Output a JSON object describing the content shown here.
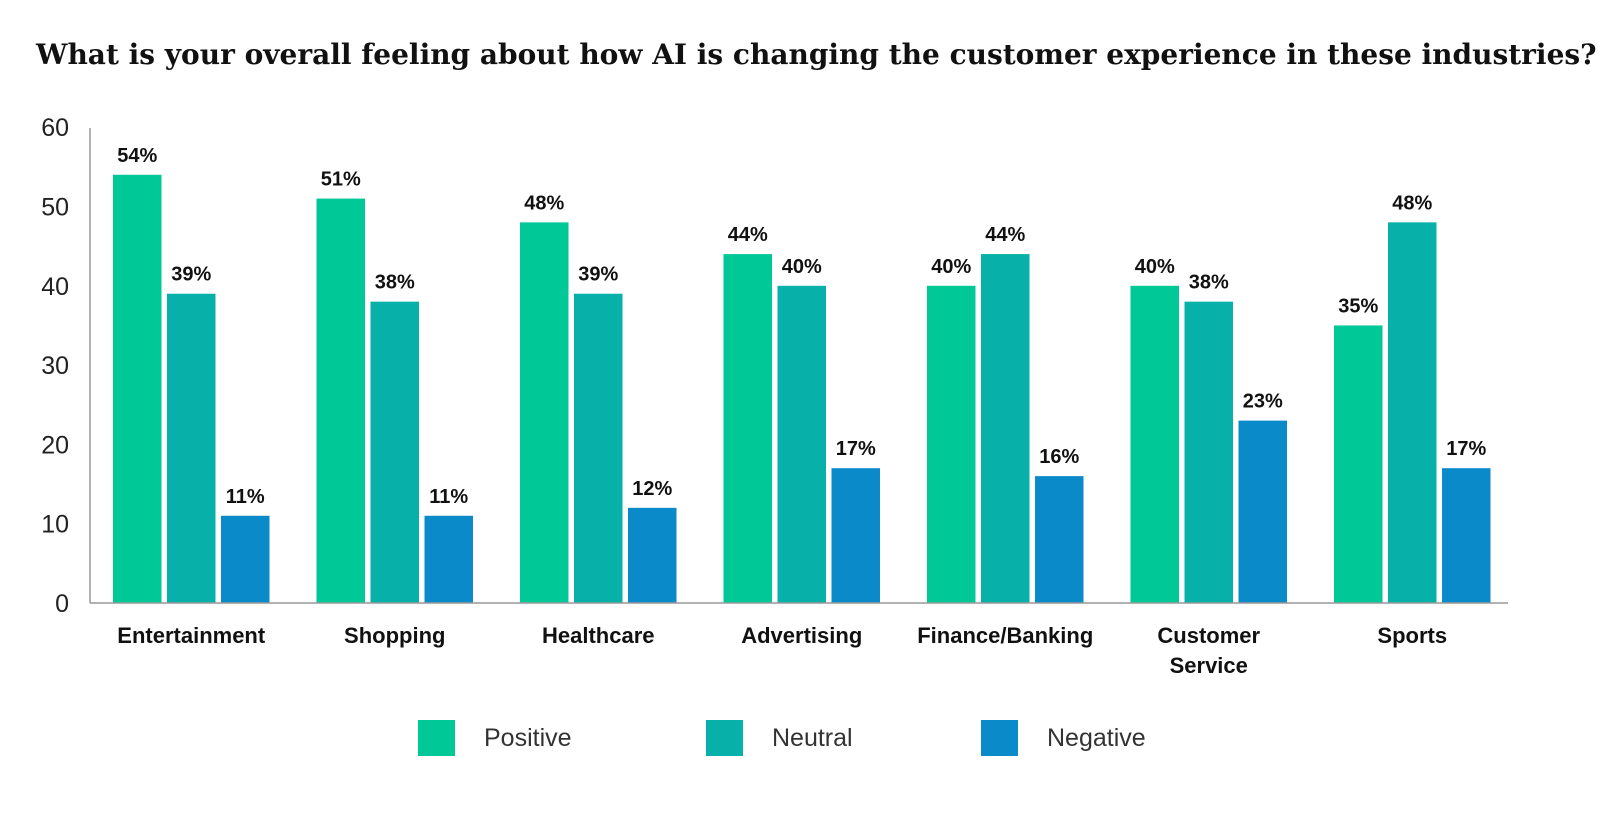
{
  "chart_data": {
    "type": "bar",
    "title": "What is your overall feeling about how AI is changing the customer experience in these industries?",
    "xlabel": "",
    "ylabel": "",
    "ylim": [
      0,
      60
    ],
    "yticks": [
      0,
      10,
      20,
      30,
      40,
      50,
      60
    ],
    "categories": [
      [
        "Entertainment"
      ],
      [
        "Shopping"
      ],
      [
        "Healthcare"
      ],
      [
        "Advertising"
      ],
      [
        "Finance/Banking"
      ],
      [
        "Customer",
        "Service"
      ],
      [
        "Sports"
      ]
    ],
    "series": [
      {
        "name": "Positive",
        "color": "#00c896",
        "values": [
          54,
          51,
          48,
          44,
          40,
          40,
          35
        ],
        "labels": [
          "54%",
          "51%",
          "48%",
          "44%",
          "40%",
          "40%",
          "35%"
        ]
      },
      {
        "name": "Neutral",
        "color": "#07b0a8",
        "values": [
          39,
          38,
          39,
          40,
          44,
          38,
          48
        ],
        "labels": [
          "39%",
          "38%",
          "39%",
          "40%",
          "44%",
          "38%",
          "48%"
        ]
      },
      {
        "name": "Negative",
        "color": "#0b8ac9",
        "values": [
          11,
          11,
          12,
          17,
          16,
          23,
          17
        ],
        "labels": [
          "11%",
          "11%",
          "12%",
          "17%",
          "16%",
          "23%",
          "17%"
        ]
      }
    ],
    "grid": false,
    "legend_position": "bottom"
  }
}
